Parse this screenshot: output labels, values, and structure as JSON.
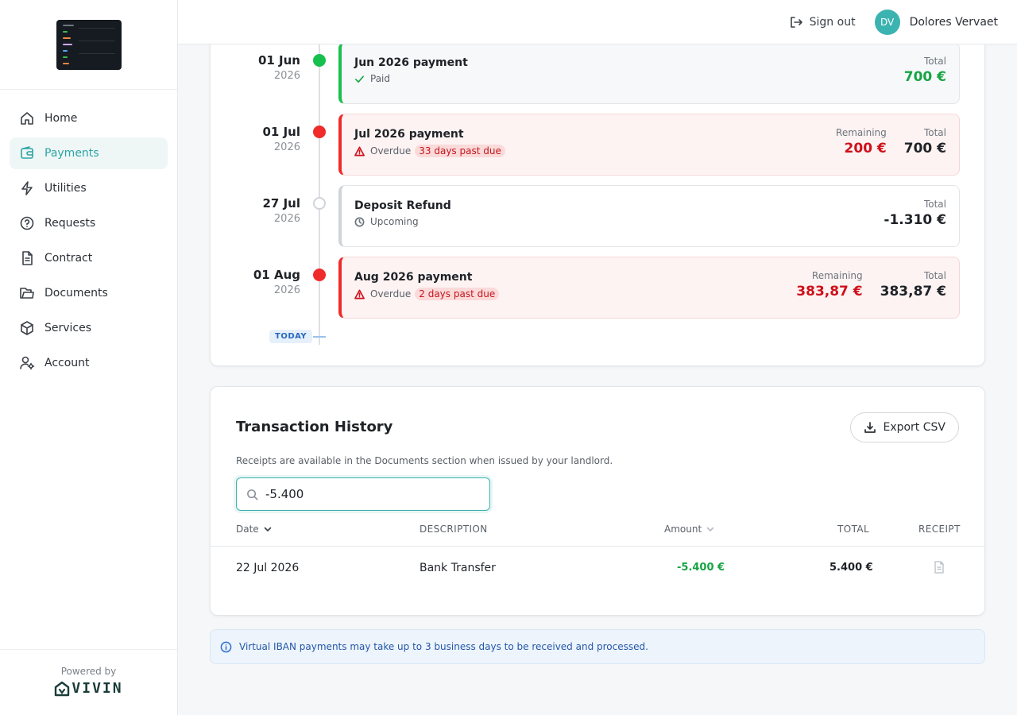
{
  "sidebar": {
    "items": [
      {
        "label": "Home",
        "icon": "home-icon",
        "active": false
      },
      {
        "label": "Payments",
        "icon": "wallet-icon",
        "active": true
      },
      {
        "label": "Utilities",
        "icon": "lightning-icon",
        "active": false
      },
      {
        "label": "Requests",
        "icon": "question-icon",
        "active": false
      },
      {
        "label": "Contract",
        "icon": "document-icon",
        "active": false
      },
      {
        "label": "Documents",
        "icon": "folder-icon",
        "active": false
      },
      {
        "label": "Services",
        "icon": "box-icon",
        "active": false
      },
      {
        "label": "Account",
        "icon": "user-gear-icon",
        "active": false
      }
    ],
    "footer": {
      "powered_by": "Powered by",
      "brand": "VIVIN"
    }
  },
  "header": {
    "sign_out": "Sign out",
    "avatar_initials": "DV",
    "user_name": "Dolores Vervaet"
  },
  "timeline": {
    "entries": [
      {
        "day": "01 Jun",
        "year": "2026",
        "title": "Jun 2026 payment",
        "status": "Paid",
        "status_type": "paid",
        "total_label": "Total",
        "total": "700 €"
      },
      {
        "day": "01 Jul",
        "year": "2026",
        "title": "Jul 2026 payment",
        "status": "Overdue",
        "status_type": "overdue",
        "badge": "33 days past due",
        "remaining_label": "Remaining",
        "remaining": "200 €",
        "total_label": "Total",
        "total": "700 €"
      },
      {
        "day": "27 Jul",
        "year": "2026",
        "title": "Deposit Refund",
        "status": "Upcoming",
        "status_type": "upcoming",
        "total_label": "Total",
        "total": "-1.310 €"
      },
      {
        "day": "01 Aug",
        "year": "2026",
        "title": "Aug 2026 payment",
        "status": "Overdue",
        "status_type": "overdue",
        "badge": "2 days past due",
        "remaining_label": "Remaining",
        "remaining": "383,87 €",
        "total_label": "Total",
        "total": "383,87 €"
      }
    ],
    "today_label": "TODAY"
  },
  "transactions": {
    "title": "Transaction History",
    "export_label": "Export CSV",
    "subtitle": "Receipts are available in the Documents section when issued by your landlord.",
    "search_value": "-5.400",
    "columns": {
      "date": "Date",
      "description": "DESCRIPTION",
      "amount": "Amount",
      "total": "TOTAL",
      "receipt": "RECEIPT"
    },
    "rows": [
      {
        "date": "22 Jul 2026",
        "description": "Bank Transfer",
        "amount": "-5.400 €",
        "total": "5.400 €"
      }
    ]
  },
  "info_banner": {
    "text": "Virtual IBAN payments may take up to 3 business days to be received and processed."
  },
  "colors": {
    "accent": "#2ba5a4",
    "paid": "#17c04d",
    "overdue": "#ef2b2b",
    "info": "#2457a8"
  }
}
